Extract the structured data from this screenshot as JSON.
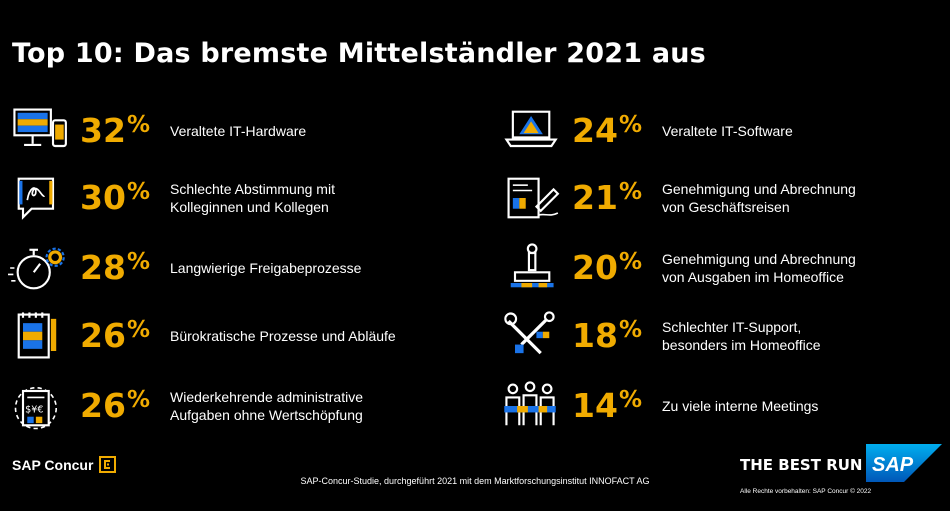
{
  "title": "Top 10: Das bremste Mittelständler 2021 aus",
  "chart_data": {
    "type": "table",
    "title": "Top 10: Das bremste Mittelständler 2021 aus",
    "unit": "%",
    "items": [
      {
        "value": 32,
        "label": "Veraltete IT-Hardware",
        "icon": "computer-devices-icon"
      },
      {
        "value": 30,
        "label": "Schlechte Abstimmung mit\nKolleginnen und Kollegen",
        "icon": "chat-bubble-icon"
      },
      {
        "value": 28,
        "label": "Langwierige Freigabeprozesse",
        "icon": "stopwatch-gear-icon"
      },
      {
        "value": 26,
        "label": "Bürokratische Prozesse und Abläufe",
        "icon": "notepad-icon"
      },
      {
        "value": 26,
        "label": "Wiederkehrende administrative\nAufgaben ohne Wertschöpfung",
        "icon": "recurring-invoice-icon"
      },
      {
        "value": 24,
        "label": "Veraltete IT-Software",
        "icon": "laptop-warning-icon"
      },
      {
        "value": 21,
        "label": "Genehmigung und Abrechnung\nvon Geschäftsreisen",
        "icon": "contract-signing-icon"
      },
      {
        "value": 20,
        "label": "Genehmigung und Abrechnung\nvon Ausgaben im Homeoffice",
        "icon": "stamp-icon"
      },
      {
        "value": 18,
        "label": "Schlechter IT-Support,\nbesonders im Homeoffice",
        "icon": "tools-icon"
      },
      {
        "value": 14,
        "label": "Zu viele interne Meetings",
        "icon": "meeting-people-icon"
      }
    ]
  },
  "colors": {
    "accent": "#f0ab00",
    "background": "#000000",
    "text": "#ffffff",
    "blue": "#1a73e8",
    "sap_blue": "#0070c0"
  },
  "footer": {
    "brand": "SAP Concur",
    "brand_mark": "C",
    "source": "SAP-Concur-Studie, durchgeführt 2021 mit dem Marktforschungsinstitut INNOFACT AG",
    "tagline": "THE BEST RUN",
    "sap_logo": "SAP",
    "rights": "Alle Rechte vorbehalten: SAP Concur © 2022"
  }
}
